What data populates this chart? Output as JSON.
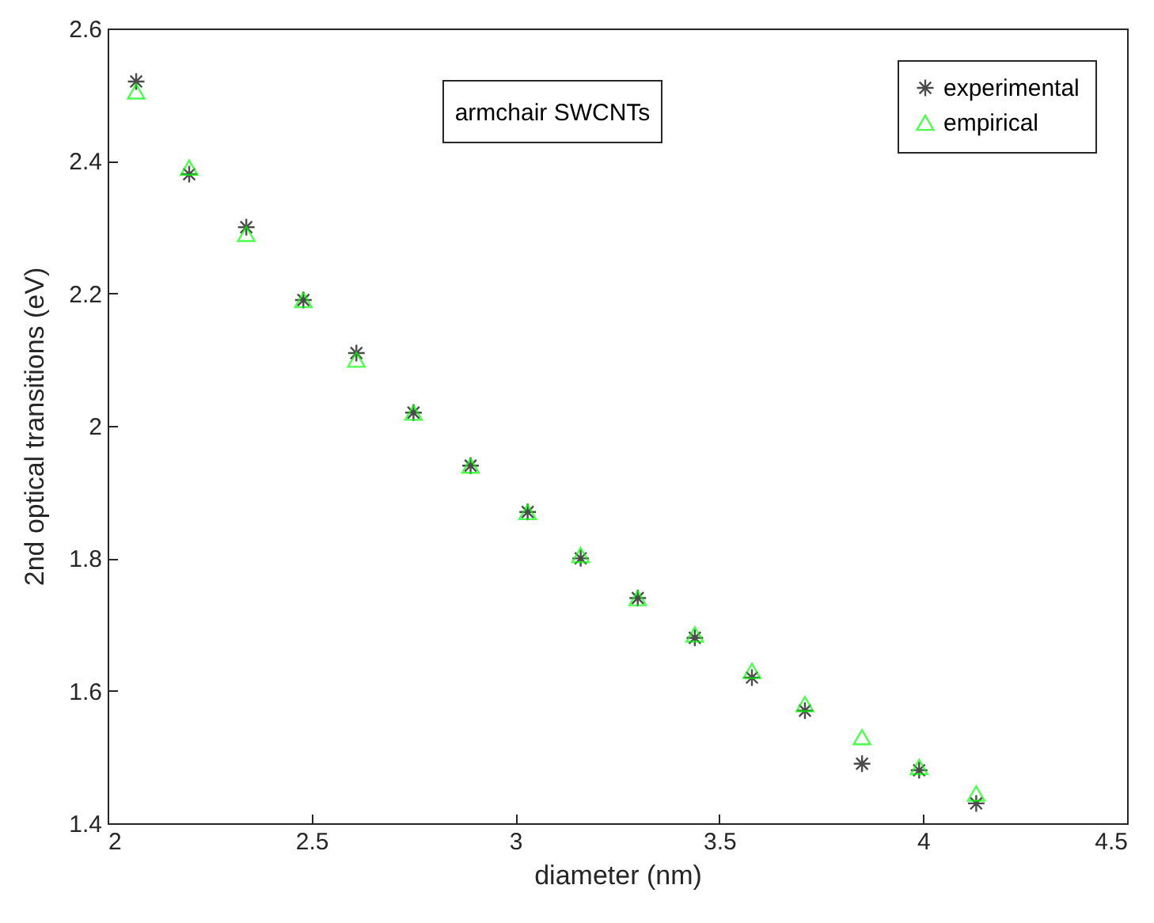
{
  "chart_data": {
    "type": "scatter",
    "xlabel": "diameter (nm)",
    "ylabel": "2nd optical transitions (eV)",
    "annotations": [
      "armchair SWCNTs"
    ],
    "x": [
      2.07,
      2.2,
      2.34,
      2.48,
      2.61,
      2.75,
      2.89,
      3.03,
      3.16,
      3.3,
      3.44,
      3.58,
      3.71,
      3.85,
      3.99,
      4.13
    ],
    "series": [
      {
        "name": "experimental",
        "color": "#000000",
        "marker": "cross",
        "values": [
          2.52,
          2.38,
          2.3,
          2.19,
          2.11,
          2.02,
          1.94,
          1.87,
          1.8,
          1.74,
          1.68,
          1.62,
          1.57,
          1.49,
          1.48,
          1.43
        ]
      },
      {
        "name": "empirical",
        "color": "#00ff00",
        "marker": "triangle",
        "values": [
          2.505,
          2.39,
          2.29,
          2.19,
          2.1,
          2.02,
          1.94,
          1.87,
          1.805,
          1.74,
          1.685,
          1.63,
          1.58,
          1.53,
          1.485,
          1.445
        ]
      }
    ],
    "xlim": [
      2,
      4.5
    ],
    "xticks": [
      2,
      2.5,
      3,
      3.5,
      4,
      4.5
    ],
    "ylim": [
      1.4,
      2.6
    ],
    "yticks": [
      1.4,
      1.6,
      1.8,
      2,
      2.2,
      2.4,
      2.6
    ],
    "grid": false,
    "legend": "top right"
  }
}
